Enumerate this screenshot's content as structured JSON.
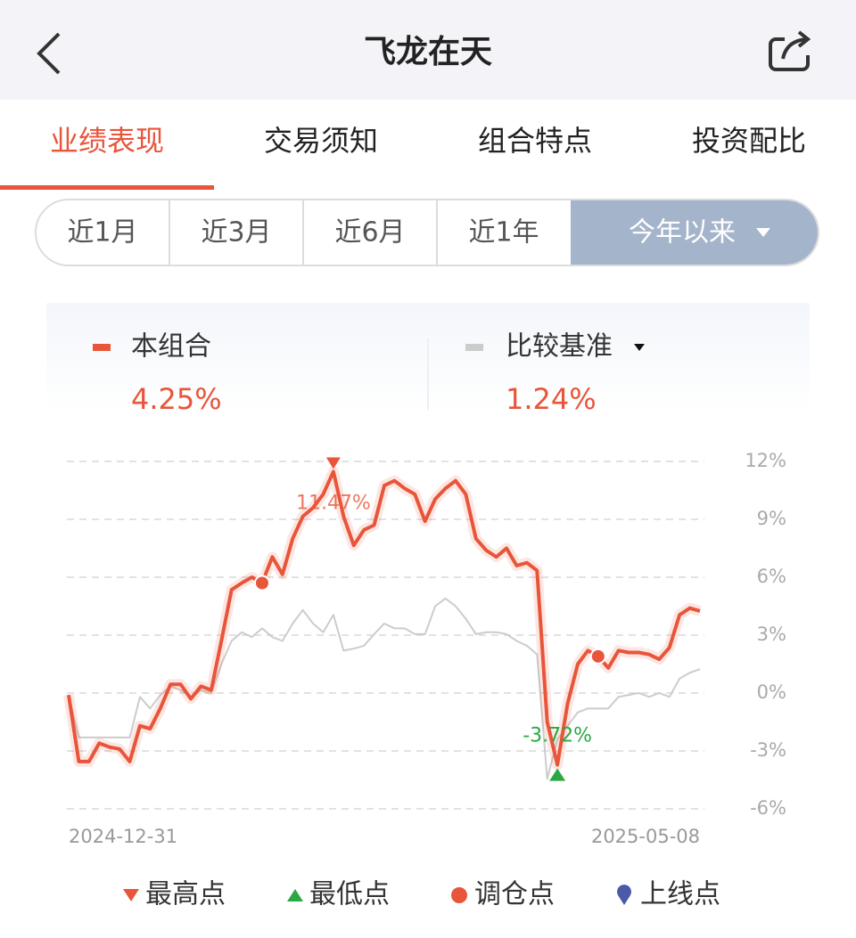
{
  "header": {
    "title": "飞龙在天"
  },
  "tabs": [
    "业绩表现",
    "交易须知",
    "组合特点",
    "投资配比"
  ],
  "periods": [
    "近1月",
    "近3月",
    "近6月",
    "近1年",
    "今年以来"
  ],
  "chart_data": {
    "type": "line",
    "categories": [
      "2024-12-31",
      null,
      null,
      null,
      null,
      null,
      null,
      null,
      null,
      null,
      null,
      null,
      null,
      null,
      null,
      null,
      null,
      null,
      null,
      null,
      null,
      null,
      null,
      null,
      null,
      null,
      null,
      null,
      null,
      null,
      null,
      null,
      null,
      null,
      null,
      null,
      null,
      null,
      null,
      null,
      null,
      null,
      null,
      null,
      null,
      null,
      null,
      null,
      null,
      null,
      null,
      null,
      null,
      null,
      null,
      null,
      null,
      null,
      null,
      null,
      null,
      null,
      "2025-05-08"
    ],
    "series": [
      {
        "name": "本组合",
        "color": "#e8553a",
        "return_label": "4.25%",
        "values": [
          -0.1,
          -3.55,
          -3.55,
          -2.6,
          -2.8,
          -2.9,
          -3.55,
          -1.7,
          -1.85,
          -0.8,
          0.45,
          0.45,
          -0.3,
          0.35,
          0.15,
          2.7,
          5.35,
          5.7,
          6.0,
          5.7,
          7.05,
          6.15,
          8.0,
          9.15,
          9.6,
          10.3,
          11.47,
          9.15,
          7.65,
          8.45,
          8.7,
          10.75,
          11.0,
          10.6,
          10.3,
          8.9,
          10.05,
          10.6,
          11.0,
          10.3,
          8.0,
          7.4,
          7.05,
          7.5,
          6.6,
          6.75,
          6.35,
          -1.5,
          -3.72,
          -0.55,
          1.5,
          2.2,
          1.9,
          1.3,
          2.2,
          2.1,
          2.1,
          2.0,
          1.75,
          2.35,
          4.05,
          4.4,
          4.25
        ],
        "value_labels": [
          null,
          null,
          null,
          null,
          null,
          null,
          null,
          null,
          null,
          null,
          null,
          null,
          null,
          null,
          null,
          null,
          null,
          null,
          null,
          null,
          null,
          null,
          null,
          null,
          null,
          null,
          "11.47%",
          null,
          null,
          null,
          null,
          null,
          null,
          null,
          null,
          null,
          null,
          null,
          null,
          null,
          null,
          null,
          null,
          null,
          null,
          null,
          null,
          null,
          "-3.72%",
          null,
          null,
          null,
          null,
          null,
          null,
          null,
          null,
          null,
          null,
          null,
          null,
          null,
          null
        ],
        "rebalance_points": [
          19,
          52
        ]
      },
      {
        "name": "比较基准",
        "color": "#cccccc",
        "return_label": "1.24%",
        "values": [
          -0.1,
          -2.3,
          -2.3,
          -2.3,
          -2.3,
          -2.3,
          -2.3,
          -0.2,
          -0.8,
          -0.1,
          0.35,
          0.15,
          -0.2,
          0.15,
          0,
          1.5,
          2.7,
          3.15,
          2.9,
          3.35,
          2.9,
          2.7,
          3.6,
          4.3,
          3.6,
          3.15,
          4.05,
          2.2,
          2.3,
          2.45,
          3.05,
          3.6,
          3.35,
          3.35,
          3.05,
          3.05,
          4.5,
          4.9,
          4.5,
          3.85,
          3.05,
          3.15,
          3.15,
          3.05,
          2.7,
          2.45,
          2.0,
          -4.45,
          -2.4,
          -1.7,
          -1.0,
          -0.8,
          -0.8,
          -0.8,
          -0.2,
          -0.1,
          0,
          -0.2,
          0,
          -0.2,
          0.75,
          1.05,
          1.24
        ]
      }
    ],
    "ylim": [
      -6,
      12
    ],
    "yticks": [
      {
        "value": -6,
        "label": "-6%"
      },
      {
        "value": -3,
        "label": "-3%"
      },
      {
        "value": 0,
        "label": "0%"
      },
      {
        "value": 3,
        "label": "3%"
      },
      {
        "value": 6,
        "label": "6%"
      },
      {
        "value": 9,
        "label": "9%"
      },
      {
        "value": 12,
        "label": "12%"
      }
    ],
    "grid": true,
    "marker_legend": [
      "最高点",
      "最低点",
      "调仓点",
      "上线点"
    ]
  }
}
